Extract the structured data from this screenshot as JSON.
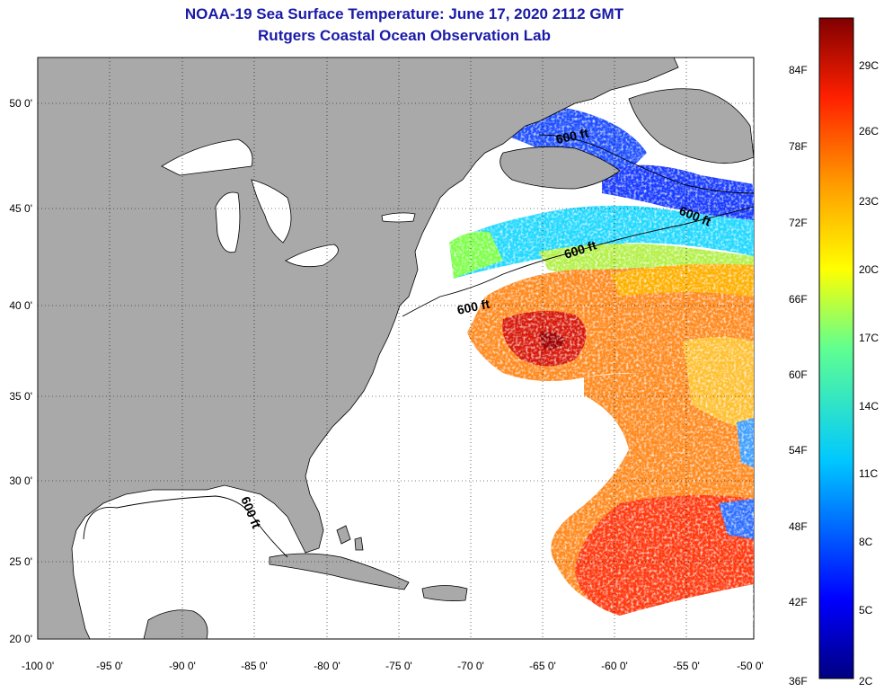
{
  "header": {
    "title": "NOAA-19 Sea Surface Temperature:  June 17, 2020 2112 GMT",
    "subtitle": "Rutgers Coastal Ocean Observation Lab"
  },
  "map": {
    "lon_ticks": [
      "-100 0'",
      "-95 0'",
      "-90 0'",
      "-85 0'",
      "-80 0'",
      "-75 0'",
      "-70 0'",
      "-65 0'",
      "-60 0'",
      "-55 0'",
      "-50 0'"
    ],
    "lat_ticks": [
      "50 0'",
      "45 0'",
      "40 0'",
      "35 0'",
      "30 0'",
      "25 0'",
      "20 0'"
    ],
    "depth_labels": [
      "600 ft",
      "600 ft",
      "600 ft",
      "600 ft",
      "600 ft"
    ]
  },
  "colorbar": {
    "fahrenheit": [
      "84F",
      "78F",
      "72F",
      "66F",
      "60F",
      "54F",
      "48F",
      "42F",
      "36F"
    ],
    "celsius": [
      "29C",
      "26C",
      "23C",
      "20C",
      "17C",
      "14C",
      "11C",
      "8C",
      "5C",
      "2C"
    ]
  },
  "colors": {
    "title": "#1a1aa8",
    "land": "#a9a9a9",
    "ocean": "#ffffff"
  }
}
